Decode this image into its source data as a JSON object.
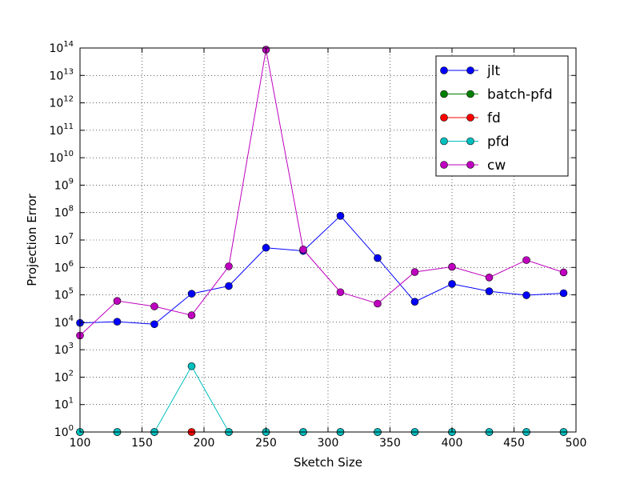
{
  "chart_data": {
    "type": "line",
    "title": "",
    "xlabel": "Sketch Size",
    "ylabel": "Projection Error",
    "xlim": [
      100,
      500
    ],
    "ylim_log10": [
      0,
      14
    ],
    "y_scale": "log",
    "grid": true,
    "legend_position": "top-right",
    "x_ticks": [
      "100",
      "150",
      "200",
      "250",
      "300",
      "350",
      "400",
      "450",
      "500"
    ],
    "y_ticks": [
      {
        "base": "10",
        "exp": "0"
      },
      {
        "base": "10",
        "exp": "1"
      },
      {
        "base": "10",
        "exp": "2"
      },
      {
        "base": "10",
        "exp": "3"
      },
      {
        "base": "10",
        "exp": "4"
      },
      {
        "base": "10",
        "exp": "5"
      },
      {
        "base": "10",
        "exp": "6"
      },
      {
        "base": "10",
        "exp": "7"
      },
      {
        "base": "10",
        "exp": "8"
      },
      {
        "base": "10",
        "exp": "9"
      },
      {
        "base": "10",
        "exp": "10"
      },
      {
        "base": "10",
        "exp": "11"
      },
      {
        "base": "10",
        "exp": "12"
      },
      {
        "base": "10",
        "exp": "13"
      },
      {
        "base": "10",
        "exp": "14"
      }
    ],
    "x": [
      100,
      130,
      160,
      190,
      220,
      250,
      280,
      310,
      340,
      370,
      400,
      430,
      460,
      490
    ],
    "series": [
      {
        "name": "jlt",
        "color": "#0000ff",
        "values": [
          9500,
          10500,
          8500,
          110000,
          210000,
          5200000,
          4000000,
          76000000,
          2200000,
          56000,
          250000,
          135000,
          97000,
          115000
        ]
      },
      {
        "name": "batch-pfd",
        "color": "#008000",
        "values": [
          1,
          1,
          1,
          1,
          1,
          1,
          1,
          1,
          1,
          1,
          1,
          1,
          1,
          1
        ]
      },
      {
        "name": "fd",
        "color": "#ff0000",
        "values": [
          1,
          1,
          1,
          1,
          1,
          1,
          1,
          1,
          1,
          1,
          1,
          1,
          1,
          1
        ]
      },
      {
        "name": "pfd",
        "color": "#00bfbf",
        "values": [
          1,
          1,
          1,
          250,
          1,
          1,
          1,
          1,
          1,
          1,
          1,
          1,
          1,
          1
        ]
      },
      {
        "name": "cw",
        "color": "#bf00bf",
        "values": [
          3300,
          60000,
          38000,
          18000,
          1100000,
          87000000000000,
          4500000,
          125000,
          48000,
          680000,
          1050000,
          430000,
          1850000,
          660000
        ]
      }
    ]
  }
}
